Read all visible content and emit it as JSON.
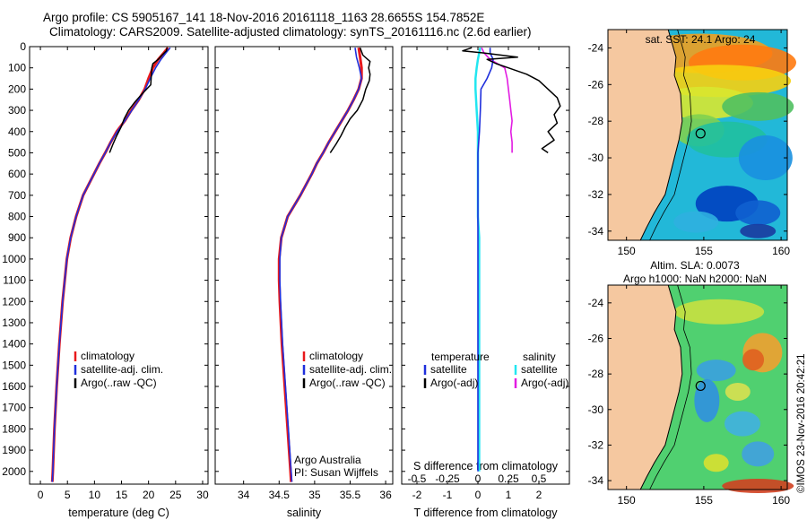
{
  "header": {
    "line1": "Argo profile: CS 5905167_141 18-Nov-2016 20161118_1163 28.6655S 154.7852E",
    "line2": "Climatology: CARS2009. Satellite-adjusted climatology: synTS_20161116.nc (2.6d earlier)"
  },
  "colors": {
    "climatology": "#e8191c",
    "satellite": "#1f2fdc",
    "argo": "#000000",
    "s_satellite": "#22e6f0",
    "s_argo": "#e21ce2",
    "land": "#f5c8a0"
  },
  "chart_data": [
    {
      "type": "line",
      "id": "temperature",
      "xlabel": "temperature (deg C)",
      "ylabel": "",
      "xlim": [
        -2,
        31
      ],
      "ylim": [
        2060,
        0
      ],
      "xticks": [
        "0",
        "5",
        "10",
        "15",
        "20",
        "25",
        "30"
      ],
      "xtick_values": [
        0,
        5,
        10,
        15,
        20,
        25,
        30
      ],
      "yticks": [
        "0",
        "100",
        "200",
        "300",
        "400",
        "500",
        "600",
        "700",
        "800",
        "900",
        "1000",
        "1100",
        "1200",
        "1300",
        "1400",
        "1500",
        "1600",
        "1700",
        "1800",
        "1900",
        "2000"
      ],
      "ytick_values": [
        0,
        100,
        200,
        300,
        400,
        500,
        600,
        700,
        800,
        900,
        1000,
        1100,
        1200,
        1300,
        1400,
        1500,
        1600,
        1700,
        1800,
        1900,
        2000
      ],
      "legend": [
        "climatology",
        "satellite-adj. clim.",
        "Argo(..raw -QC)"
      ],
      "series": [
        {
          "name": "climatology",
          "depth": [
            5,
            30,
            60,
            100,
            150,
            200,
            250,
            300,
            350,
            400,
            450,
            500,
            550,
            600,
            700,
            800,
            900,
            1000,
            1200,
            1400,
            1600,
            1800,
            2000,
            2050
          ],
          "values": [
            23.6,
            22.8,
            21.8,
            20.8,
            20.0,
            19.3,
            18.2,
            16.8,
            15.6,
            14.1,
            13.0,
            12.0,
            10.9,
            9.9,
            7.9,
            6.6,
            5.6,
            4.9,
            4.1,
            3.5,
            3.0,
            2.6,
            2.3,
            2.2
          ]
        },
        {
          "name": "satellite",
          "depth": [
            5,
            30,
            60,
            100,
            150,
            200,
            250,
            300,
            350,
            400,
            450,
            500,
            550,
            600,
            700,
            800,
            900,
            1000,
            1200,
            1400,
            1600,
            1800,
            2000,
            2050
          ],
          "values": [
            24.0,
            23.2,
            22.3,
            21.3,
            20.3,
            19.4,
            18.2,
            16.9,
            15.6,
            14.2,
            13.0,
            12.0,
            10.9,
            9.9,
            7.9,
            6.6,
            5.6,
            4.9,
            4.1,
            3.5,
            3.0,
            2.6,
            2.3,
            2.2
          ]
        },
        {
          "name": "argo",
          "depth": [
            5,
            20,
            40,
            60,
            80,
            100,
            140,
            180,
            220,
            260,
            300,
            340,
            380,
            420,
            460,
            500
          ],
          "values": [
            23.4,
            23.3,
            22.5,
            21.8,
            20.8,
            20.6,
            20.5,
            20.4,
            18.9,
            17.5,
            16.3,
            15.5,
            14.9,
            14.1,
            13.4,
            12.8
          ]
        }
      ]
    },
    {
      "type": "line",
      "id": "salinity",
      "xlabel": "salinity",
      "xlim": [
        33.6,
        36.1
      ],
      "ylim": [
        2060,
        0
      ],
      "xticks": [
        "34",
        "34.5",
        "35",
        "35.5",
        "36"
      ],
      "xtick_values": [
        34,
        34.5,
        35,
        35.5,
        36
      ],
      "legend": [
        "climatology",
        "satellite-adj. clim.",
        "Argo(..raw -QC)"
      ],
      "annotation": [
        "Argo Australia",
        "PI: Susan Wijffels"
      ],
      "series": [
        {
          "name": "climatology",
          "depth": [
            5,
            50,
            100,
            150,
            200,
            250,
            300,
            350,
            400,
            450,
            500,
            550,
            600,
            700,
            800,
            900,
            1000,
            1100,
            1200,
            1400,
            1600,
            1800,
            2000,
            2050
          ],
          "values": [
            35.62,
            35.64,
            35.66,
            35.66,
            35.62,
            35.55,
            35.47,
            35.38,
            35.29,
            35.2,
            35.12,
            35.03,
            34.96,
            34.8,
            34.62,
            34.53,
            34.5,
            34.5,
            34.51,
            34.54,
            34.58,
            34.62,
            34.66,
            34.67
          ]
        },
        {
          "name": "satellite",
          "depth": [
            5,
            50,
            100,
            150,
            200,
            250,
            300,
            350,
            400,
            450,
            500,
            550,
            600,
            700,
            800,
            900,
            1000,
            1100,
            1200,
            1400,
            1600,
            1800,
            2000,
            2050
          ],
          "values": [
            35.57,
            35.59,
            35.63,
            35.66,
            35.62,
            35.55,
            35.47,
            35.38,
            35.29,
            35.2,
            35.12,
            35.03,
            34.96,
            34.8,
            34.62,
            34.53,
            34.51,
            34.51,
            34.52,
            34.55,
            34.59,
            34.63,
            34.67,
            34.68
          ]
        },
        {
          "name": "argo",
          "depth": [
            5,
            40,
            70,
            100,
            130,
            160,
            200,
            250,
            300,
            340,
            380,
            420,
            460,
            500
          ],
          "values": [
            35.64,
            35.68,
            35.78,
            35.76,
            35.78,
            35.77,
            35.72,
            35.68,
            35.6,
            35.5,
            35.43,
            35.37,
            35.3,
            35.22
          ]
        }
      ]
    },
    {
      "type": "line",
      "id": "difference",
      "xlabel": "T difference from climatology",
      "xlabel_top": "S difference from climatology",
      "xlim": [
        -2.5,
        3.0
      ],
      "ylim": [
        2060,
        0
      ],
      "xticks": [
        "-2",
        "-1",
        "0",
        "1",
        "2"
      ],
      "xtick_values": [
        -2,
        -1,
        0,
        1,
        2
      ],
      "sticks": [
        "-0.5",
        "-0.25",
        "0",
        "0.25",
        "0.5"
      ],
      "stick_values": [
        -0.5,
        -0.25,
        0,
        0.25,
        0.5
      ],
      "legend_temperature": [
        "temperature",
        "satellite",
        "Argo(-adj)"
      ],
      "legend_salinity": [
        "salinity",
        "satellite",
        "Argo(-adj)"
      ],
      "series": [
        {
          "name": "T satellite",
          "depth": [
            5,
            30,
            60,
            100,
            150,
            200,
            300,
            400,
            500,
            600,
            700,
            800,
            1000,
            1200,
            1500,
            1800,
            2000
          ],
          "values": [
            0.4,
            0.4,
            0.5,
            0.45,
            0.3,
            0.1,
            0.08,
            0.05,
            0.0,
            0.0,
            0.0,
            0.0,
            0.0,
            0.0,
            0.0,
            0.0,
            0.0
          ]
        },
        {
          "name": "T argo",
          "depth": [
            5,
            20,
            30,
            50,
            60,
            80,
            100,
            130,
            160,
            200,
            240,
            280,
            320,
            360,
            400,
            440,
            480,
            500
          ],
          "values": [
            -0.2,
            -0.5,
            0.2,
            1.3,
            0.3,
            0.6,
            1.0,
            1.6,
            2.0,
            2.3,
            2.6,
            2.7,
            2.5,
            2.6,
            2.3,
            2.5,
            2.1,
            2.3
          ]
        },
        {
          "name": "S satellite",
          "depth": [
            5,
            30,
            60,
            100,
            150,
            200,
            300,
            400,
            500,
            600,
            700,
            800,
            900,
            1000,
            1200,
            1500,
            1800,
            2000
          ],
          "values": [
            0.02,
            0.01,
            0.0,
            -0.01,
            -0.02,
            -0.02,
            -0.01,
            0.0,
            0.0,
            0.0,
            0.0,
            0.0,
            0.01,
            0.01,
            0.01,
            0.01,
            0.01,
            0.01
          ]
        },
        {
          "name": "S argo",
          "depth": [
            5,
            30,
            60,
            100,
            150,
            200,
            250,
            300,
            350,
            400,
            450,
            500
          ],
          "values": [
            0.03,
            0.05,
            0.1,
            0.22,
            0.24,
            0.25,
            0.26,
            0.27,
            0.28,
            0.27,
            0.28,
            0.28
          ]
        }
      ]
    }
  ],
  "map_sst": {
    "title": "sat. SST: 24.1 Argo: 24",
    "lat_ticks": [
      "-24",
      "-26",
      "-28",
      "-30",
      "-32",
      "-34"
    ],
    "lat_values": [
      -24,
      -26,
      -28,
      -30,
      -32,
      -34
    ],
    "lon_ticks": [
      "150",
      "155",
      "160"
    ],
    "lon_values": [
      150,
      155,
      160
    ],
    "argo_lon": 154.79,
    "argo_lat": -28.67
  },
  "map_sla": {
    "title1": "Altim. SLA: 0.0073",
    "title2": "Argo h1000: NaN h2000: NaN",
    "lat_ticks": [
      "-24",
      "-26",
      "-28",
      "-30",
      "-32",
      "-34"
    ],
    "lat_values": [
      -24,
      -26,
      -28,
      -30,
      -32,
      -34
    ],
    "lon_ticks": [
      "150",
      "155",
      "160"
    ],
    "lon_values": [
      150,
      155,
      160
    ],
    "argo_lon": 154.79,
    "argo_lat": -28.67
  },
  "stamp": "©IMOS 23-Nov-2016 20:42:21"
}
